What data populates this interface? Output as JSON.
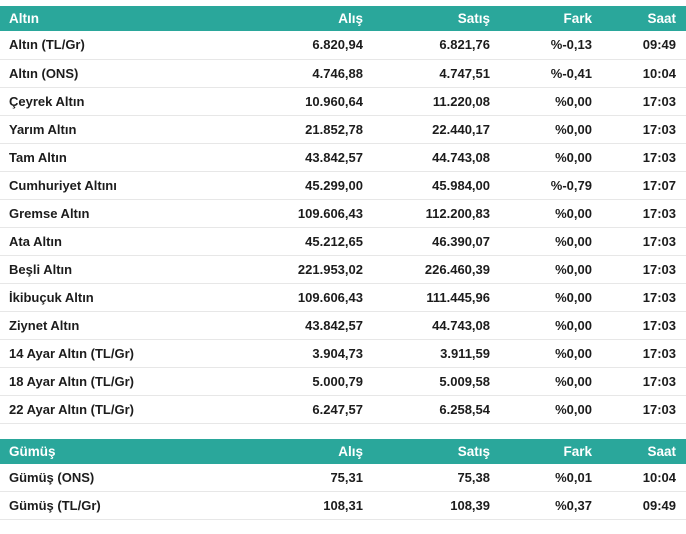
{
  "colors": {
    "header_bg": "#2aa79b",
    "header_text": "#ffffff",
    "row_text": "#1c1c1c",
    "separator": "#e7e7e7",
    "page_bg": "#ffffff"
  },
  "tables": [
    {
      "id": "altin",
      "headers": [
        "Altın",
        "Alış",
        "Satış",
        "Fark",
        "Saat"
      ],
      "rows": [
        [
          "Altın (TL/Gr)",
          "6.820,94",
          "6.821,76",
          "%-0,13",
          "09:49"
        ],
        [
          "Altın (ONS)",
          "4.746,88",
          "4.747,51",
          "%-0,41",
          "10:04"
        ],
        [
          "Çeyrek Altın",
          "10.960,64",
          "11.220,08",
          "%0,00",
          "17:03"
        ],
        [
          "Yarım Altın",
          "21.852,78",
          "22.440,17",
          "%0,00",
          "17:03"
        ],
        [
          "Tam Altın",
          "43.842,57",
          "44.743,08",
          "%0,00",
          "17:03"
        ],
        [
          "Cumhuriyet Altını",
          "45.299,00",
          "45.984,00",
          "%-0,79",
          "17:07"
        ],
        [
          "Gremse Altın",
          "109.606,43",
          "112.200,83",
          "%0,00",
          "17:03"
        ],
        [
          "Ata Altın",
          "45.212,65",
          "46.390,07",
          "%0,00",
          "17:03"
        ],
        [
          "Beşli Altın",
          "221.953,02",
          "226.460,39",
          "%0,00",
          "17:03"
        ],
        [
          "İkibuçuk Altın",
          "109.606,43",
          "111.445,96",
          "%0,00",
          "17:03"
        ],
        [
          "Ziynet Altın",
          "43.842,57",
          "44.743,08",
          "%0,00",
          "17:03"
        ],
        [
          "14 Ayar Altın (TL/Gr)",
          "3.904,73",
          "3.911,59",
          "%0,00",
          "17:03"
        ],
        [
          "18 Ayar Altın (TL/Gr)",
          "5.000,79",
          "5.009,58",
          "%0,00",
          "17:03"
        ],
        [
          "22 Ayar Altın (TL/Gr)",
          "6.247,57",
          "6.258,54",
          "%0,00",
          "17:03"
        ]
      ]
    },
    {
      "id": "gumus",
      "headers": [
        "Gümüş",
        "Alış",
        "Satış",
        "Fark",
        "Saat"
      ],
      "rows": [
        [
          "Gümüş (ONS)",
          "75,31",
          "75,38",
          "%0,01",
          "10:04"
        ],
        [
          "Gümüş (TL/Gr)",
          "108,31",
          "108,39",
          "%0,37",
          "09:49"
        ]
      ]
    }
  ]
}
